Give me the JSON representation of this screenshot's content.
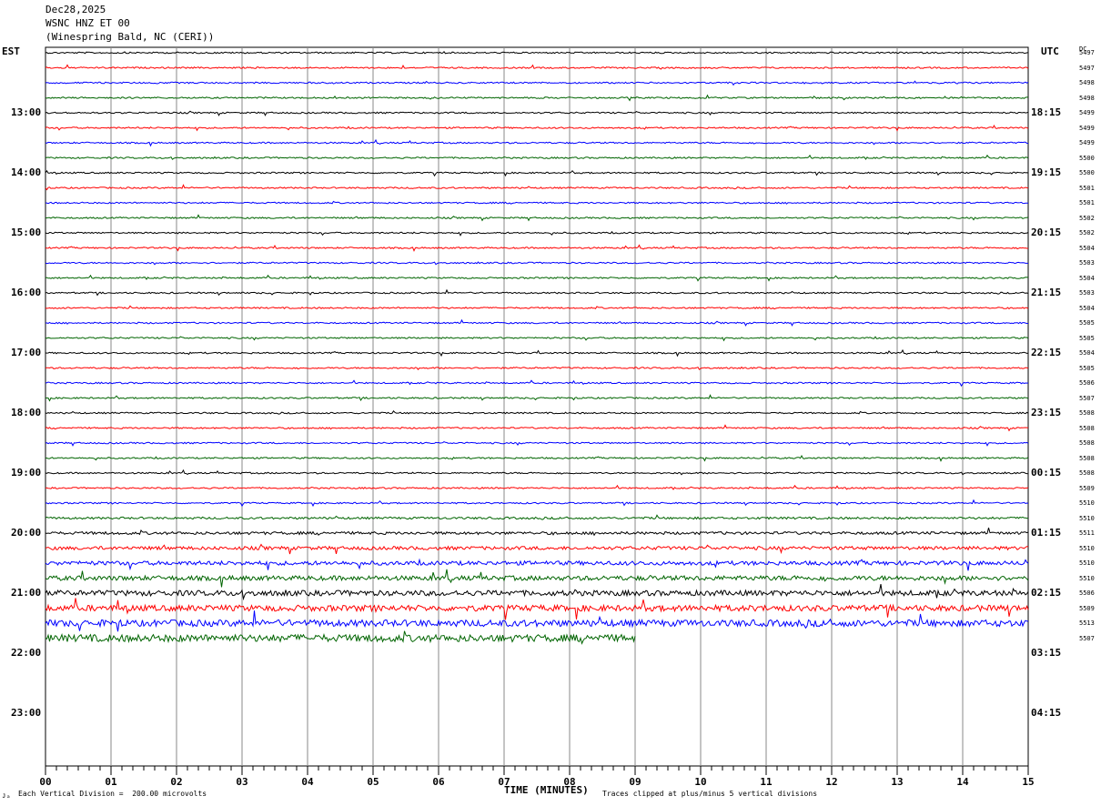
{
  "header": {
    "date": "Dec28,2025",
    "station": "WSNC HNZ ET 00",
    "location": "(Winespring Bald, NC (CERI))"
  },
  "left_tz": "EST",
  "right_tz": "UTC",
  "dc_label": "DC",
  "footer": {
    "scale": "Each Vertical Division =  200.00 microvolts",
    "clip": "Traces clipped at plus/minus 5 vertical divisions",
    "corner_mark": "ᴊₐ"
  },
  "chart_data": {
    "type": "line",
    "title": "WSNC HNZ ET 00",
    "xlabel": "TIME (MINUTES)",
    "xlim": [
      0,
      15
    ],
    "x_ticks": [
      "00",
      "01",
      "02",
      "03",
      "04",
      "05",
      "06",
      "07",
      "08",
      "09",
      "10",
      "11",
      "12",
      "13",
      "14",
      "15"
    ],
    "rows_per_hour": 4,
    "left_hour_labels": [
      "13:00",
      "14:00",
      "15:00",
      "16:00",
      "17:00",
      "18:00",
      "19:00",
      "20:00",
      "21:00",
      "22:00",
      "23:00"
    ],
    "right_hour_labels": [
      "18:15",
      "19:15",
      "20:15",
      "21:15",
      "22:15",
      "23:15",
      "00:15",
      "01:15",
      "02:15",
      "03:15",
      "04:15"
    ],
    "trace_colors": [
      "#000000",
      "#ff0000",
      "#0000ff",
      "#006400"
    ],
    "trace_count": 40,
    "last_trace_end_minute": 9,
    "dc_offsets": [
      "5497",
      "5497",
      "5498",
      "5498",
      "5499",
      "5499",
      "5499",
      "5500",
      "5500",
      "5501",
      "5501",
      "5502",
      "5502",
      "5504",
      "5503",
      "5504",
      "5503",
      "5504",
      "5505",
      "5505",
      "5504",
      "5505",
      "5506",
      "5507",
      "5508",
      "5508",
      "5508",
      "5508",
      "5508",
      "5509",
      "5510",
      "5510",
      "5511",
      "5510",
      "5510",
      "5510",
      "5506",
      "5509",
      "5513",
      "5507"
    ],
    "amplitude_scale": "200.00 microvolts per vertical division",
    "clip_level_divisions": 5
  }
}
